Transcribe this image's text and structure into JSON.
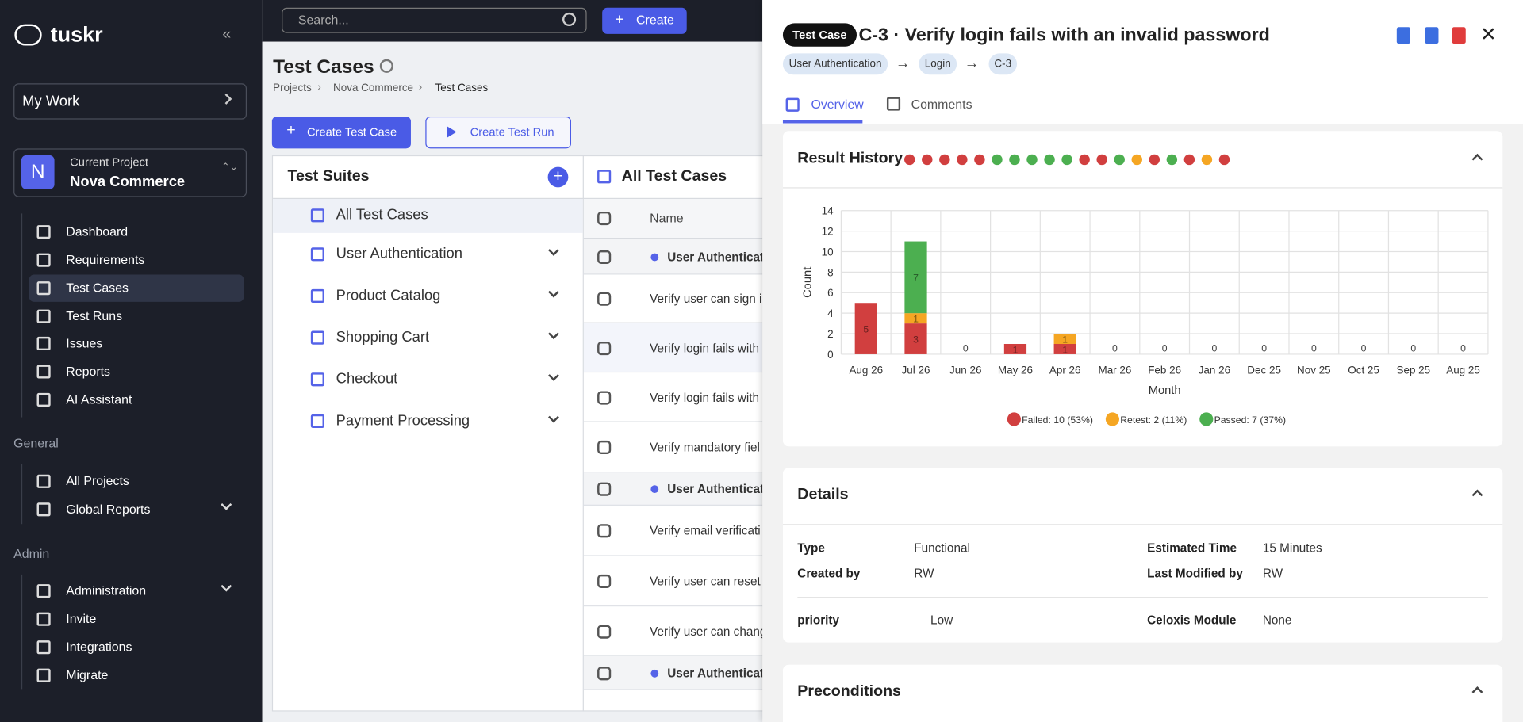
{
  "sidebar": {
    "logo": "tuskr",
    "my_work": "My Work",
    "project": {
      "initial": "N",
      "label": "Current Project",
      "name": "Nova Commerce"
    },
    "nav": [
      "Dashboard",
      "Requirements",
      "Test Cases",
      "Test Runs",
      "Issues",
      "Reports",
      "AI Assistant"
    ],
    "general": {
      "heading": "General",
      "items": [
        "All Projects",
        "Global Reports"
      ]
    },
    "admin": {
      "heading": "Admin",
      "items": [
        "Administration",
        "Invite",
        "Integrations",
        "Migrate"
      ]
    }
  },
  "topbar": {
    "search": "Search...",
    "create": "Create"
  },
  "page": {
    "title": "Test Cases",
    "breadcrumb": [
      "Projects",
      "Nova Commerce",
      "Test Cases"
    ],
    "buttons": [
      "Create Test Case",
      "Create Test Run"
    ]
  },
  "suites": {
    "heading": "Test Suites",
    "items": [
      "All Test Cases",
      "User Authentication",
      "Product Catalog",
      "Shopping Cart",
      "Checkout",
      "Payment Processing"
    ]
  },
  "list": {
    "heading": "All Test Cases",
    "column": "Name",
    "rows": [
      {
        "name": "User Authenticat",
        "group": true
      },
      {
        "name": "Verify user can sign i",
        "group": false
      },
      {
        "name": "Verify login fails with",
        "group": false
      },
      {
        "name": "Verify login fails with",
        "group": false
      },
      {
        "name": "Verify mandatory fiel",
        "group": false
      },
      {
        "name": "User Authenticat",
        "group": true
      },
      {
        "name": "Verify email verificati",
        "group": false
      },
      {
        "name": "Verify user can reset",
        "group": false
      },
      {
        "name": "Verify user can chang",
        "group": false
      },
      {
        "name": "User Authenticat",
        "group": true
      }
    ]
  },
  "panel": {
    "badge": "Test Case",
    "title": "C-3 · Verify login fails with an invalid password",
    "breadcrumb": [
      "User Authentication",
      "Login",
      "C-3"
    ],
    "tabs": [
      "Overview",
      "Comments"
    ],
    "result_history": {
      "heading": "Result History",
      "history": [
        "#d13f3f",
        "#d13f3f",
        "#d13f3f",
        "#d13f3f",
        "#d13f3f",
        "#4caf50",
        "#4caf50",
        "#4caf50",
        "#4caf50",
        "#4caf50",
        "#d13f3f",
        "#d13f3f",
        "#4caf50",
        "#f5a623",
        "#d13f3f",
        "#4caf50",
        "#d13f3f",
        "#f5a623",
        "#d13f3f"
      ]
    },
    "details": {
      "heading": "Details",
      "fields": [
        {
          "label": "Type",
          "value": "Functional"
        },
        {
          "label": "Estimated Time",
          "value": "15 Minutes"
        },
        {
          "label": "Created by",
          "value": "RW"
        },
        {
          "label": "Last Modified by",
          "value": "RW"
        },
        {
          "label": "priority",
          "value": "Low"
        },
        {
          "label": "Celoxis Module",
          "value": "None"
        }
      ]
    },
    "preconditions": {
      "heading": "Preconditions"
    }
  },
  "chart_data": {
    "type": "bar",
    "stacked": true,
    "x_label": "Month",
    "y_label": "Count",
    "categories": [
      "Aug 26",
      "Jul 26",
      "Jun 26",
      "May 26",
      "Apr 26",
      "Mar 26",
      "Feb 26",
      "Jan 26",
      "Dec 25",
      "Nov 25",
      "Oct 25",
      "Sep 25",
      "Aug 25"
    ],
    "series": [
      {
        "name": "Failed: 10 (53%)",
        "color": "#d13f3f",
        "values": [
          5,
          3,
          0,
          1,
          1,
          0,
          0,
          0,
          0,
          0,
          0,
          0,
          0
        ]
      },
      {
        "name": "Retest: 2 (11%)",
        "color": "#f5a623",
        "values": [
          0,
          1,
          0,
          0,
          1,
          0,
          0,
          0,
          0,
          0,
          0,
          0,
          0
        ]
      },
      {
        "name": "Passed: 7 (37%)",
        "color": "#4caf50",
        "values": [
          0,
          7,
          0,
          0,
          0,
          0,
          0,
          0,
          0,
          0,
          0,
          0,
          0
        ]
      }
    ],
    "ylim": [
      0,
      14
    ],
    "yticks": [
      0,
      2,
      4,
      6,
      8,
      10,
      12,
      14
    ],
    "grid": true,
    "legend": "bottom"
  }
}
